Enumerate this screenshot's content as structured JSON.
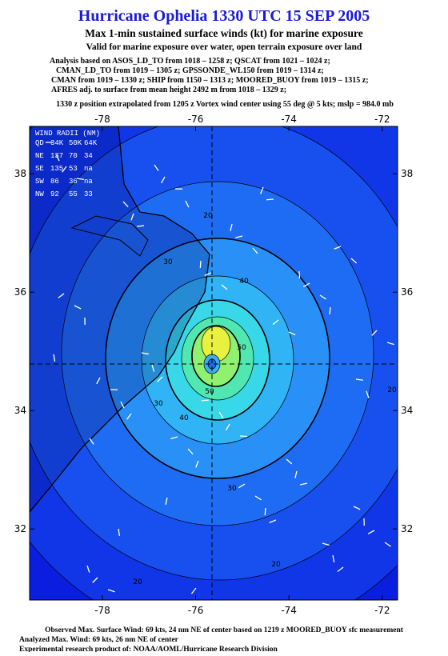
{
  "header": {
    "title": "Hurricane Ophelia 1330 UTC 15 SEP 2005",
    "subtitle": "Max 1-min sustained surface winds (kt) for marine exposure",
    "note": "Valid for marine exposure over water, open terrain exposure over land",
    "analysis": [
      "Analysis based on ASOS_LD_TO from 1018 – 1258 z; QSCAT from 1021 – 1024 z;",
      "CMAN_LD_TO from 1019 – 1305 z; GPSSONDE_WL150 from 1019 – 1314 z;",
      "CMAN from 1019 – 1330 z; SHIP from 1150 – 1313 z; MOORED_BUOY from 1019 – 1315 z;",
      "AFRES adj. to surface from mean height 2492 m from 1018 – 1329 z;"
    ],
    "position": "1330 z position extrapolated from 1205 z Vortex wind center using 55 deg @ 5 kts; mslp = 984.0 mb"
  },
  "map": {
    "xlim": [
      -79.56,
      -71.67
    ],
    "ylim": [
      30.8,
      38.8
    ],
    "xticks": [
      -78,
      -76,
      -74,
      -72
    ],
    "yticks": [
      32,
      34,
      36,
      38
    ],
    "wind_radii": {
      "title": "WIND RADII (NM)",
      "header": [
        "QD",
        "34K",
        "50K",
        "64K"
      ],
      "rows": [
        [
          "NE",
          "137",
          "70",
          "34"
        ],
        [
          "SE",
          "135",
          "53",
          "na"
        ],
        [
          "SW",
          "86",
          "36",
          "na"
        ],
        [
          "NW",
          "92",
          "55",
          "33"
        ]
      ]
    },
    "contour_labels": [
      "20",
      "30",
      "40",
      "50",
      "30",
      "40",
      "50",
      "20",
      "20",
      "30",
      "20"
    ]
  },
  "footer": {
    "lines": [
      "Observed Max. Surface Wind: 69 kts, 24 nm NE of center based on 1219 z MOORED_BUOY sfc measurement",
      "Analyzed Max. Wind: 69 kts, 26 nm NE of center",
      "Experimental research product of: NOAA/AOML/Hurricane Research Division"
    ]
  }
}
